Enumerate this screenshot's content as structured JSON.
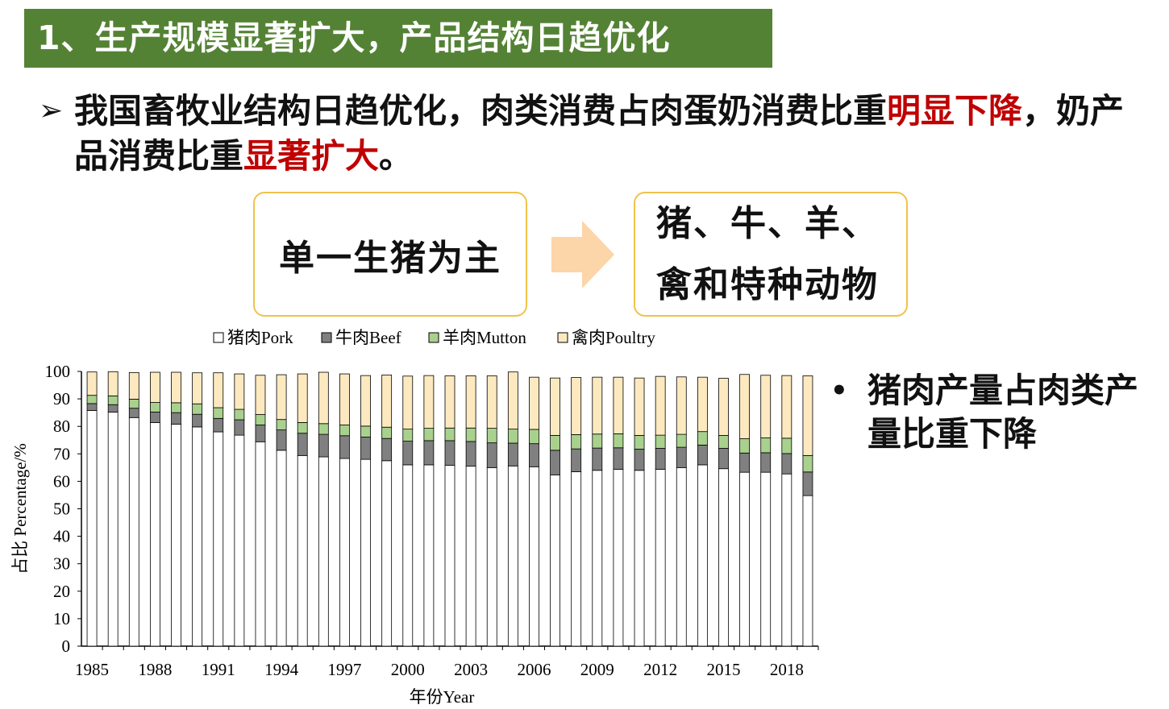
{
  "title": "1、生产规模显著扩大，产品结构日趋优化",
  "main_bullet": {
    "marker": "➢",
    "part1": "我国畜牧业结构日趋优化，肉类消费占肉蛋奶消费比重",
    "emph1": "明显下降",
    "part2": "，奶产品消费比重",
    "emph2": "显著扩大",
    "part3": "。"
  },
  "box_from": "单一生猪为主",
  "box_to": {
    "line1": "猪、牛、羊、",
    "line2": "禽和特种动物"
  },
  "side_bullet": {
    "marker": "•",
    "text": "猪肉产量占肉类产量比重下降"
  },
  "colors": {
    "title_bg": "#548235",
    "emphasis": "#c00000",
    "box_border": "#f0c24a",
    "arrow": "#fcd5a8"
  },
  "chart_data": {
    "type": "bar",
    "stacked": true,
    "xlabel": "年份Year",
    "ylabel": "占比 Percentage/%",
    "ylim": [
      0,
      100
    ],
    "yticks": [
      "0",
      "10",
      "20",
      "30",
      "40",
      "50",
      "60",
      "70",
      "80",
      "90",
      "100"
    ],
    "xtick_labels": [
      "1985",
      "1988",
      "1991",
      "1994",
      "1997",
      "2000",
      "2003",
      "2006",
      "2009",
      "2012",
      "2015",
      "2018"
    ],
    "legend_position": "top",
    "categories": [
      "1985",
      "1986",
      "1987",
      "1988",
      "1989",
      "1990",
      "1991",
      "1992",
      "1993",
      "1994",
      "1995",
      "1996",
      "1997",
      "1998",
      "1999",
      "2000",
      "2001",
      "2002",
      "2003",
      "2004",
      "2005",
      "2006",
      "2007",
      "2008",
      "2009",
      "2010",
      "2011",
      "2012",
      "2013",
      "2014",
      "2015",
      "2016",
      "2017",
      "2018",
      "2019"
    ],
    "series": [
      {
        "name": "猪肉Pork",
        "color": "#ffffff",
        "values": [
          85.8,
          85.2,
          83.2,
          81.4,
          80.8,
          79.8,
          78.0,
          76.8,
          74.4,
          71.3,
          69.4,
          68.9,
          68.3,
          68.0,
          67.5,
          66.0,
          66.0,
          65.8,
          65.5,
          65.0,
          65.6,
          65.3,
          62.3,
          63.5,
          64.0,
          64.4,
          64.0,
          64.4,
          65.0,
          66.0,
          64.6,
          63.3,
          63.3,
          62.7,
          54.8
        ]
      },
      {
        "name": "牛肉Beef",
        "color": "#808080",
        "values": [
          2.5,
          2.7,
          3.4,
          3.8,
          4.2,
          4.6,
          4.9,
          5.6,
          6.1,
          7.4,
          8.1,
          8.2,
          8.3,
          8.1,
          8.1,
          8.6,
          8.8,
          9.0,
          9.0,
          9.0,
          8.3,
          8.4,
          9.0,
          8.3,
          8.1,
          7.8,
          7.7,
          7.6,
          7.4,
          7.2,
          7.4,
          7.0,
          7.1,
          7.4,
          8.6
        ]
      },
      {
        "name": "羊肉Mutton",
        "color": "#a9d18e",
        "values": [
          3.0,
          3.2,
          3.3,
          3.5,
          3.6,
          3.8,
          3.9,
          3.8,
          3.8,
          3.8,
          3.9,
          3.9,
          3.9,
          4.0,
          4.1,
          4.4,
          4.5,
          4.6,
          4.9,
          5.3,
          5.1,
          5.2,
          5.4,
          5.2,
          5.1,
          5.1,
          5.0,
          4.8,
          4.7,
          4.9,
          4.7,
          5.2,
          5.4,
          5.6,
          6.0
        ]
      },
      {
        "name": "禽肉Poultry",
        "color": "#fde9c0",
        "values": [
          8.5,
          8.8,
          9.7,
          11.0,
          11.1,
          11.3,
          12.7,
          12.9,
          14.3,
          16.3,
          17.7,
          18.7,
          18.6,
          18.4,
          19.0,
          19.3,
          19.2,
          19.0,
          19.0,
          19.1,
          20.8,
          19.0,
          20.9,
          20.8,
          20.7,
          20.6,
          20.9,
          21.4,
          20.9,
          19.8,
          20.8,
          23.4,
          22.8,
          22.8,
          29.0
        ]
      }
    ]
  }
}
